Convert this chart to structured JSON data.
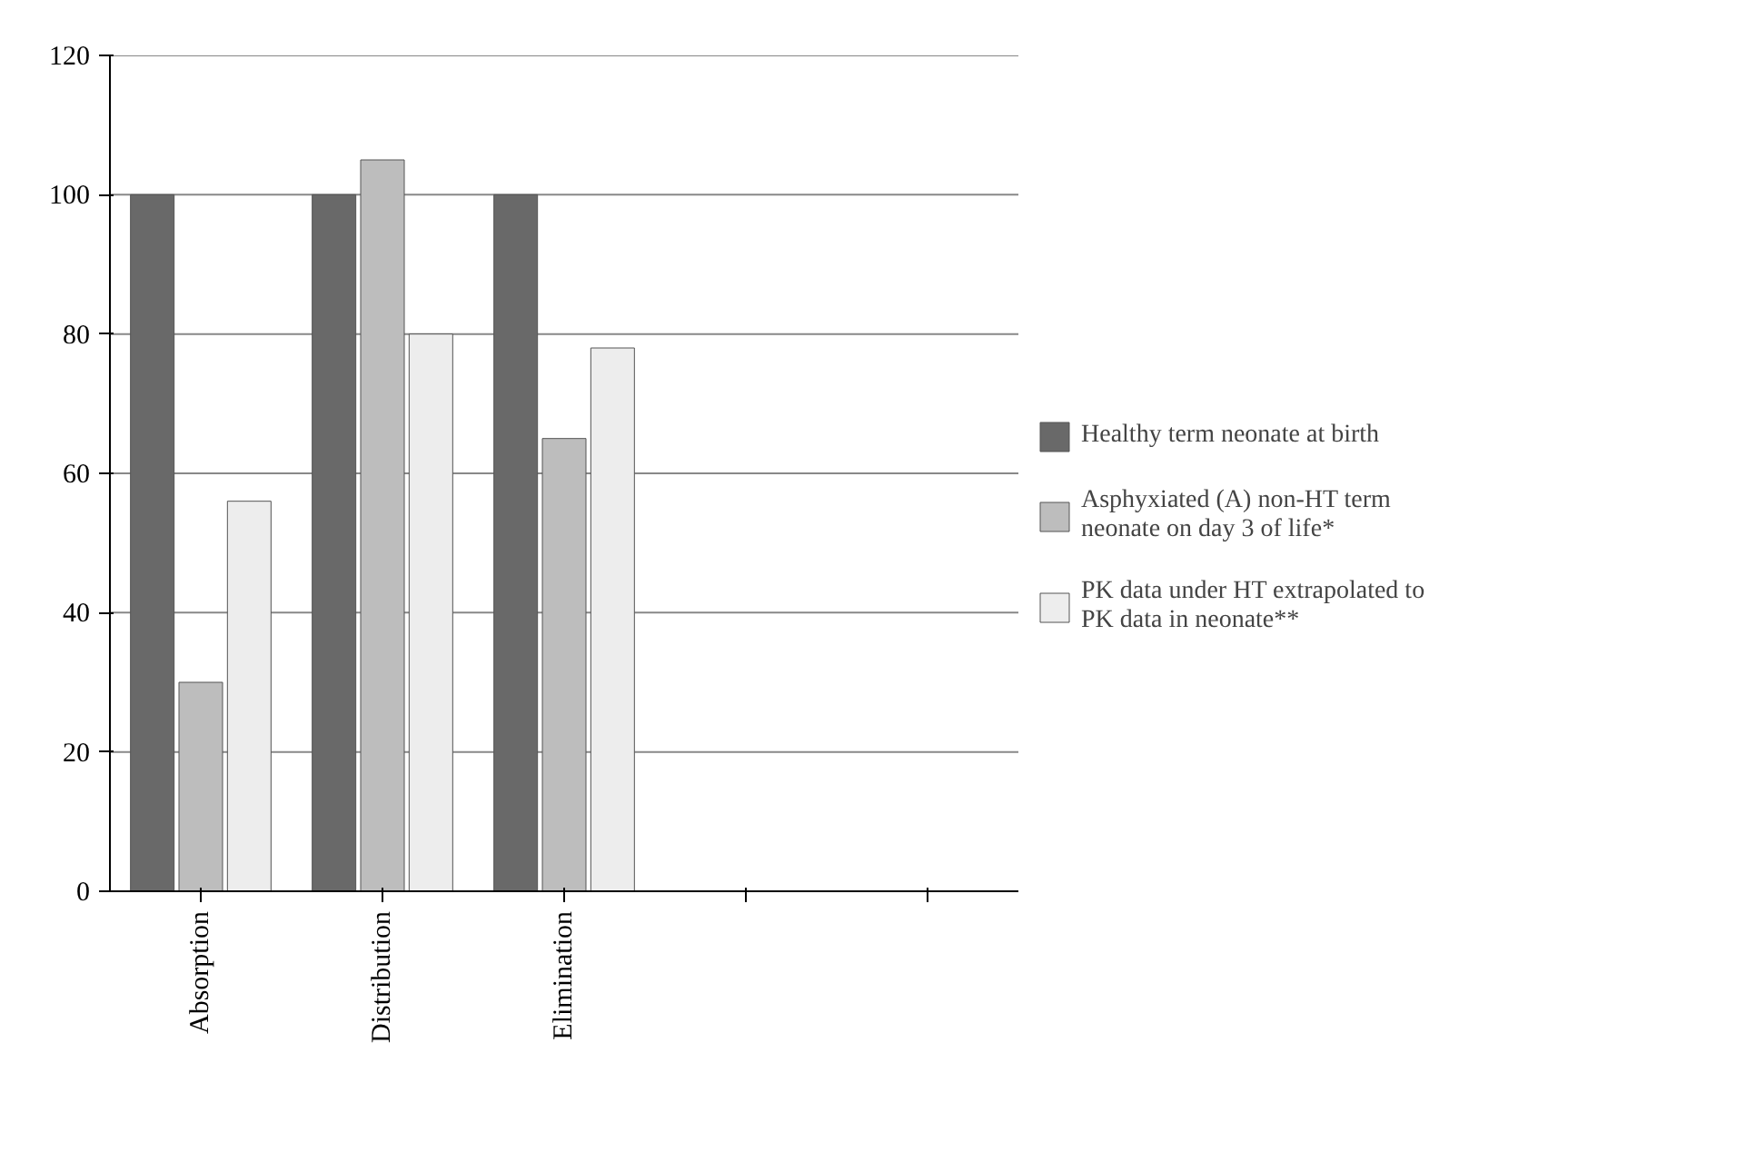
{
  "chart_data": {
    "type": "bar",
    "categories": [
      "Absorption",
      "Distribution",
      "Elimination",
      null,
      null
    ],
    "series": [
      {
        "name": "Healthy term neonate at birth",
        "color": "#696969",
        "values": [
          100,
          100,
          100,
          null,
          null
        ]
      },
      {
        "name": "Asphyxiated (A) non-HT term neonate on day 3 of life*",
        "color": "#bdbdbd",
        "values": [
          30,
          105,
          65,
          null,
          null
        ]
      },
      {
        "name": "PK data under HT extrapolated to PK data in neonate**",
        "color": "#ededed",
        "values": [
          56,
          80,
          78,
          null,
          null
        ]
      }
    ],
    "ylim": [
      0,
      120
    ],
    "yticks": [
      0,
      20,
      40,
      60,
      80,
      100,
      120
    ],
    "grid": "y",
    "legend": "right"
  }
}
